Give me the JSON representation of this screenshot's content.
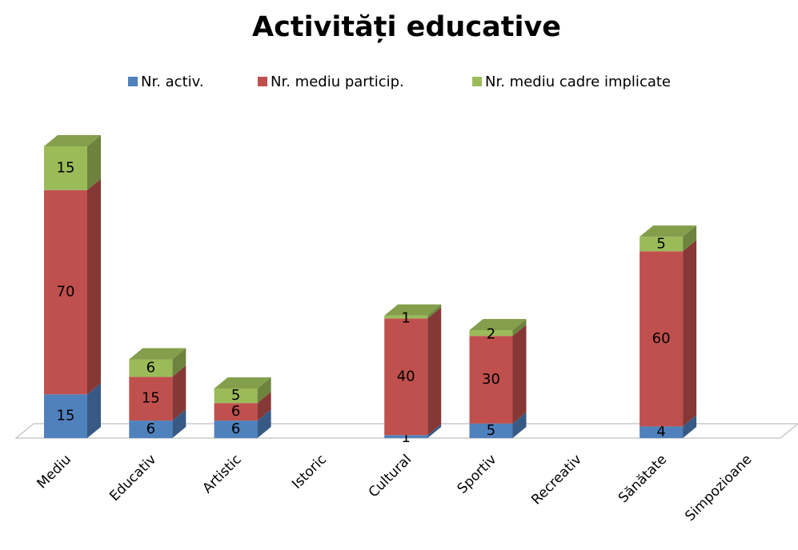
{
  "chart_data": {
    "type": "bar3d_stacked",
    "title": "Activități educative",
    "categories": [
      "Mediu",
      "Educativ",
      "Artistic",
      "Istoric",
      "Cultural",
      "Sportiv",
      "Recreativ",
      "Sănătate",
      "Simpozioane"
    ],
    "series": [
      {
        "name": "Nr. activ.",
        "color": "#4f81bd",
        "values": [
          15,
          6,
          6,
          null,
          1,
          5,
          null,
          4,
          null
        ]
      },
      {
        "name": "Nr. mediu particip.",
        "color": "#c0504d",
        "values": [
          70,
          15,
          6,
          null,
          40,
          30,
          null,
          60,
          null
        ]
      },
      {
        "name": "Nr. mediu cadre implicate",
        "color": "#9bbb59",
        "values": [
          15,
          6,
          5,
          null,
          1,
          2,
          null,
          5,
          null
        ]
      }
    ],
    "legend": "top"
  }
}
